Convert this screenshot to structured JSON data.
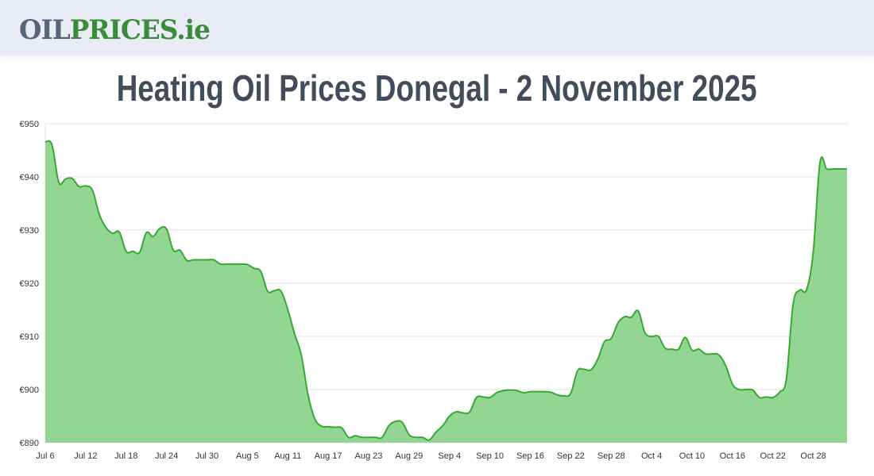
{
  "logo": {
    "part1": "OIL",
    "part2": "PRICES.ie"
  },
  "title": "Heating Oil Prices Donegal - 2 November 2025",
  "chart_data": {
    "type": "area",
    "title": "Heating Oil Prices Donegal - 2 November 2025",
    "xlabel": "",
    "ylabel": "",
    "ylim": [
      890,
      950
    ],
    "yticks": [
      890,
      900,
      910,
      920,
      930,
      940,
      950
    ],
    "ytick_labels": [
      "€890",
      "€900",
      "€910",
      "€920",
      "€930",
      "€940",
      "€950"
    ],
    "xtick_labels": [
      "Jul 6",
      "Jul 12",
      "Jul 18",
      "Jul 24",
      "Jul 30",
      "Aug 5",
      "Aug 11",
      "Aug 17",
      "Aug 23",
      "Aug 29",
      "Sep 4",
      "Sep 10",
      "Sep 16",
      "Sep 22",
      "Sep 28",
      "Oct 4",
      "Oct 10",
      "Oct 16",
      "Oct 22",
      "Oct 28"
    ],
    "xtick_every_days": 6,
    "start_date": "Jul 6",
    "end_date": "Nov 2",
    "grid": true,
    "legend": "none",
    "line_color": "#36a933",
    "fill_color": "#93d693",
    "values": [
      946.6,
      946,
      939,
      939.6,
      939.7,
      938.2,
      938.3,
      937.5,
      933,
      930.5,
      929.4,
      929.6,
      926,
      926,
      925.8,
      929.5,
      928.8,
      930.3,
      930.2,
      926.2,
      926.2,
      924.3,
      924.4,
      924.4,
      924.4,
      924.4,
      923.6,
      923.6,
      923.6,
      923.6,
      923.5,
      922.8,
      922.2,
      918.5,
      918.6,
      918.5,
      915,
      910.5,
      906.5,
      899,
      894.5,
      893.1,
      893,
      892.9,
      892.8,
      891,
      891.3,
      891,
      891,
      891,
      891,
      893.2,
      894,
      893.8,
      891.5,
      891,
      891,
      890.5,
      892,
      893.2,
      895,
      895.8,
      895.6,
      895.8,
      898.5,
      898.6,
      898.5,
      899.4,
      899.8,
      899.9,
      899.8,
      899.4,
      899.6,
      899.6,
      899.6,
      899.5,
      899,
      898.8,
      899.3,
      903.5,
      903.8,
      903.7,
      905.7,
      909,
      909.6,
      912.5,
      913.7,
      913.6,
      914.8,
      910.7,
      910,
      910,
      907.8,
      907.6,
      907.6,
      909.8,
      907.4,
      907.6,
      906.7,
      906.7,
      906.5,
      904.5,
      901,
      900,
      900,
      899.9,
      898.5,
      898.6,
      898.5,
      899.5,
      902,
      916,
      918.7,
      918.8,
      926,
      942.7,
      941.5,
      941.5,
      941.5,
      941.5
    ]
  }
}
